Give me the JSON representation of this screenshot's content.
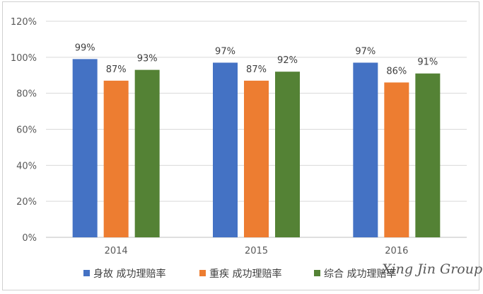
{
  "chart_data": {
    "type": "bar",
    "categories": [
      "2014",
      "2015",
      "2016"
    ],
    "series": [
      {
        "name": "身故 成功理赔率",
        "values": [
          99,
          97,
          97
        ],
        "labels": [
          "99%",
          "97%",
          "97%"
        ],
        "color": "#4472C4"
      },
      {
        "name": "重疾 成功理赔率",
        "values": [
          87,
          87,
          86
        ],
        "labels": [
          "87%",
          "87%",
          "86%"
        ],
        "color": "#ED7D31"
      },
      {
        "name": "综合 成功理赔率",
        "values": [
          93,
          92,
          91
        ],
        "labels": [
          "93%",
          "92%",
          "91%"
        ],
        "color": "#548235"
      }
    ],
    "y_ticks": [
      "0%",
      "20%",
      "40%",
      "60%",
      "80%",
      "100%",
      "120%"
    ],
    "y_tick_values": [
      0,
      20,
      40,
      60,
      80,
      100,
      120
    ],
    "ylim": [
      0,
      120
    ],
    "grid": true,
    "legend_position": "bottom"
  },
  "watermark": "Xing Jin Group"
}
